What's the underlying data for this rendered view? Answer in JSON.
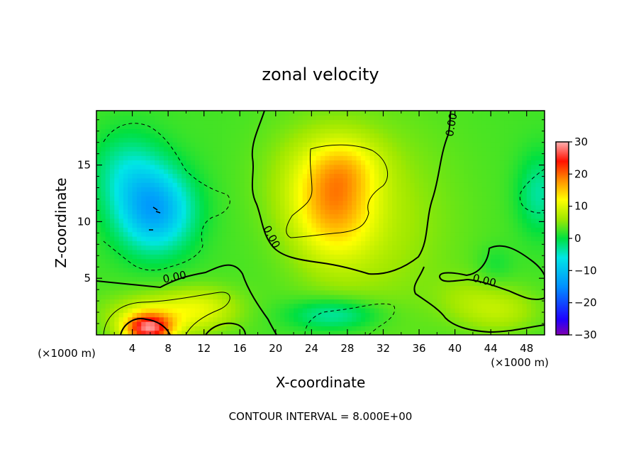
{
  "chart_data": {
    "type": "heatmap",
    "title": "zonal velocity",
    "xlabel": "X-coordinate",
    "ylabel": "Z-coordinate",
    "x_unit_left": "(×1000 m)",
    "x_unit_right": "(×1000 m)",
    "xlim": [
      0,
      50
    ],
    "ylim": [
      0,
      19.8
    ],
    "x_ticks": [
      4,
      8,
      12,
      16,
      20,
      24,
      28,
      32,
      36,
      40,
      44,
      48
    ],
    "y_ticks": [
      5,
      10,
      15
    ],
    "colorbar": {
      "min": -30,
      "max": 30,
      "ticks": [
        30,
        20,
        10,
        0,
        -10,
        -20,
        -30
      ]
    },
    "contour_interval_text": "CONTOUR INTERVAL = 8.000E+00",
    "contour_labels": [
      {
        "text": "0.00",
        "x": 8.8,
        "y": 4.8
      },
      {
        "text": "0.00",
        "x": 19.2,
        "y": 8.5
      },
      {
        "text": "0.00",
        "x": 40.0,
        "y": 18.5
      },
      {
        "text": "0.00",
        "x": 43.2,
        "y": 4.5
      }
    ],
    "field_features": [
      {
        "name": "cold-core-left",
        "x": 6.5,
        "y": 11.0,
        "value": -15,
        "sx": 4.2,
        "sy": 3.6
      },
      {
        "name": "cold-fringe",
        "x": 3.5,
        "y": 14.5,
        "value": -6,
        "sx": 4.0,
        "sy": 3.5
      },
      {
        "name": "cold-bottom-middle",
        "x": 26.5,
        "y": 1.8,
        "value": -7,
        "sx": 5.0,
        "sy": 1.4
      },
      {
        "name": "cold-right",
        "x": 49.5,
        "y": 12.5,
        "value": -6,
        "sx": 2.5,
        "sy": 3.5
      },
      {
        "name": "cold-right-low",
        "x": 44.5,
        "y": 6.3,
        "value": -2,
        "sx": 2.0,
        "sy": 1.6
      },
      {
        "name": "warm-middle",
        "x": 26.5,
        "y": 11.8,
        "value": 12,
        "sx": 4.5,
        "sy": 4.8
      },
      {
        "name": "warm-middle-top",
        "x": 28.0,
        "y": 15.0,
        "value": 4,
        "sx": 4.0,
        "sy": 2.5
      },
      {
        "name": "warm-middle-glow",
        "x": 31.0,
        "y": 10.0,
        "value": 4,
        "sx": 9.0,
        "sy": 9.0
      },
      {
        "name": "hot-bottom-left",
        "x": 5.8,
        "y": 0.6,
        "value": 22,
        "sx": 2.6,
        "sy": 1.3
      },
      {
        "name": "warm-bottom-left",
        "x": 7.5,
        "y": 1.8,
        "value": 7,
        "sx": 6.5,
        "sy": 2.0
      },
      {
        "name": "warm-bottom-left-ext",
        "x": 12.0,
        "y": 2.6,
        "value": 4,
        "sx": 4.0,
        "sy": 1.8
      },
      {
        "name": "warm-right-bottom",
        "x": 45.0,
        "y": 2.2,
        "value": 5,
        "sx": 4.5,
        "sy": 2.0
      },
      {
        "name": "warm-right-mid",
        "x": 41.0,
        "y": 3.5,
        "value": 2,
        "sx": 3.5,
        "sy": 2.0
      },
      {
        "name": "warm-mid-band",
        "x": 22.0,
        "y": 14.0,
        "value": 2,
        "sx": 5.0,
        "sy": 5.0
      }
    ]
  }
}
